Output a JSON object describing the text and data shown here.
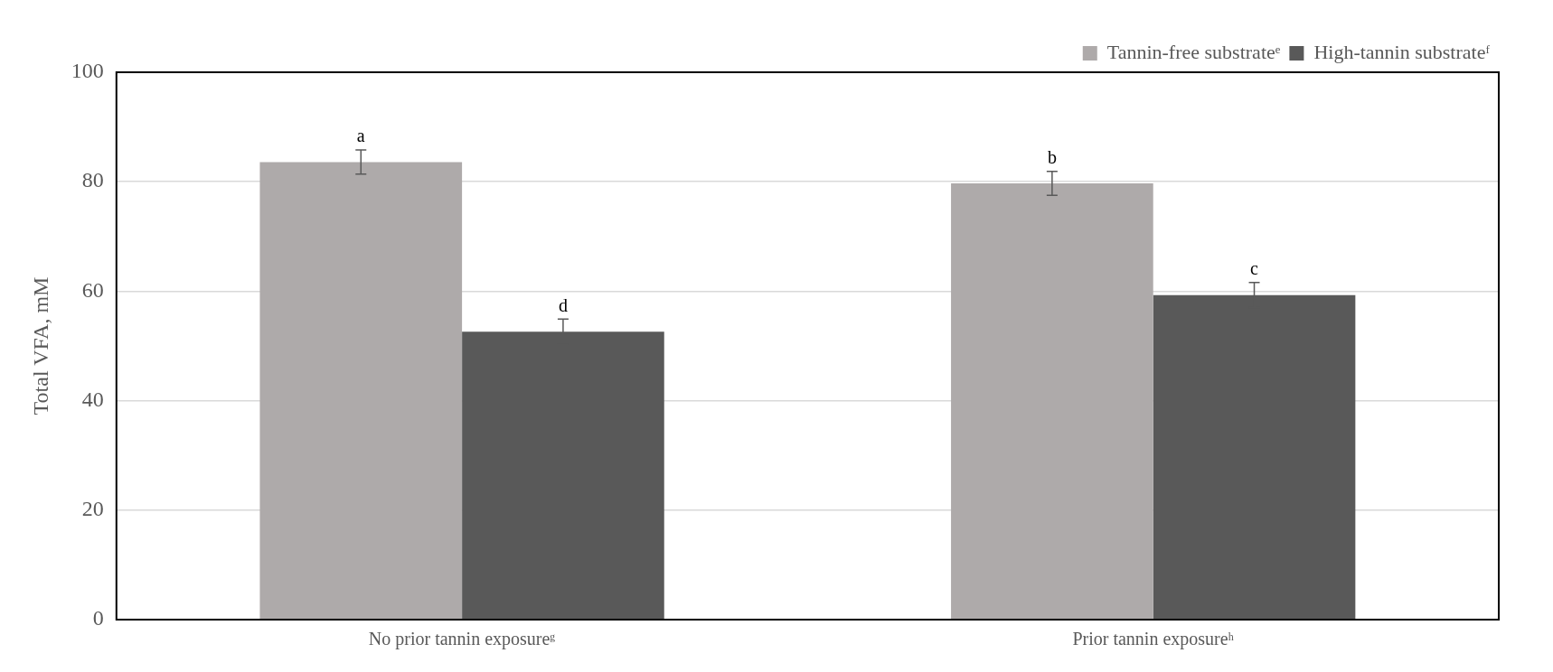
{
  "chart_data": {
    "type": "bar",
    "ylabel": "Total VFA, mM",
    "categories": [
      "No prior tannin exposureᵍ",
      "Prior tannin exposureʰ"
    ],
    "series": [
      {
        "name": "Tannin-free substrateᵉ",
        "color": "#aeaaaa",
        "values": [
          83.6,
          79.7
        ],
        "errors": [
          2.2,
          2.2
        ]
      },
      {
        "name": "High-tannin substrateᶠ",
        "color": "#595959",
        "values": [
          52.6,
          59.3
        ],
        "errors": [
          2.3,
          2.3
        ]
      }
    ],
    "ylim": [
      0,
      100
    ],
    "yticks": [
      0,
      20,
      40,
      60,
      80,
      100
    ],
    "grid": "y",
    "legend": "top right",
    "annotations": [
      "a",
      "d",
      "b",
      "c"
    ]
  }
}
